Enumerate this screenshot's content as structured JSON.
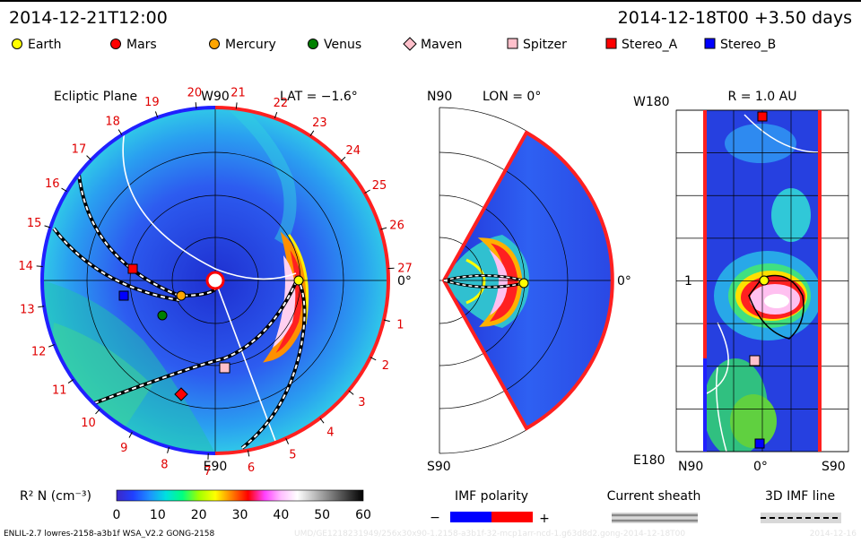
{
  "header": {
    "left_timestamp": "2014-12-21T12:00",
    "right_timestamp": "2014-12-18T00 +3.50 days"
  },
  "legend": [
    {
      "name": "Earth",
      "shape": "circle",
      "color": "#ffff00"
    },
    {
      "name": "Mars",
      "shape": "circle",
      "color": "#ff0000"
    },
    {
      "name": "Mercury",
      "shape": "circle",
      "color": "#ffa500"
    },
    {
      "name": "Venus",
      "shape": "circle",
      "color": "#008000"
    },
    {
      "name": "Maven",
      "shape": "diamond",
      "color": "#ffc0cb"
    },
    {
      "name": "Spitzer",
      "shape": "square",
      "color": "#ffc0cb"
    },
    {
      "name": "Stereo_A",
      "shape": "square",
      "color": "#ff0000"
    },
    {
      "name": "Stereo_B",
      "shape": "square",
      "color": "#0000ff"
    }
  ],
  "panels": {
    "ecliptic": {
      "title": "Ecliptic Plane",
      "lat_label": "LAT = −1.6°",
      "top_label": "W90",
      "bottom_label": "E90",
      "right_label": "0°",
      "numbers": [
        "1",
        "2",
        "3",
        "4",
        "5",
        "6",
        "7",
        "8",
        "9",
        "10",
        "11",
        "12",
        "13",
        "14",
        "15",
        "16",
        "17",
        "18",
        "19",
        "20",
        "21",
        "22",
        "23",
        "24",
        "25",
        "26",
        "27"
      ]
    },
    "meridional": {
      "top_label": "N90",
      "lon_label": "LON = 0°",
      "bottom_label": "S90",
      "right_label": "0°"
    },
    "radial": {
      "title": "R = 1.0 AU",
      "left_top": "W180",
      "left_mid": "1",
      "left_bottom": "E180",
      "bottom_left": "N90",
      "bottom_mid": "0°",
      "bottom_right": "S90"
    }
  },
  "colorbar": {
    "label": "R² N (cm⁻³)",
    "ticks": [
      "0",
      "10",
      "20",
      "30",
      "40",
      "50",
      "60"
    ],
    "stops": [
      "#3c28c8",
      "#2040ff",
      "#1e90ff",
      "#00e0e0",
      "#00ff80",
      "#a0ff00",
      "#ffff00",
      "#ff8000",
      "#ff0000",
      "#ff40ff",
      "#ffc0ff",
      "#ffffff",
      "#c0c0c0",
      "#808080",
      "#404040",
      "#000000"
    ]
  },
  "imf_polarity": {
    "label": "IMF polarity",
    "minus": "−",
    "plus": "+",
    "negative_color": "#0000ff",
    "positive_color": "#ff0000"
  },
  "current_sheath": {
    "label": "Current sheath"
  },
  "imf_line": {
    "label": "3D IMF line"
  },
  "footer": {
    "left": "ENLIL-2.7 lowres-2158-a3b1f WSA_V2.2 GONG-2158",
    "middle": "UMD/GE1218231949/256x30x90-1.2158-a3b1f-32-mcp1arr-ncd-1.g63d8d2.gong-2014-12-18T00",
    "right": "2014-12-16"
  }
}
